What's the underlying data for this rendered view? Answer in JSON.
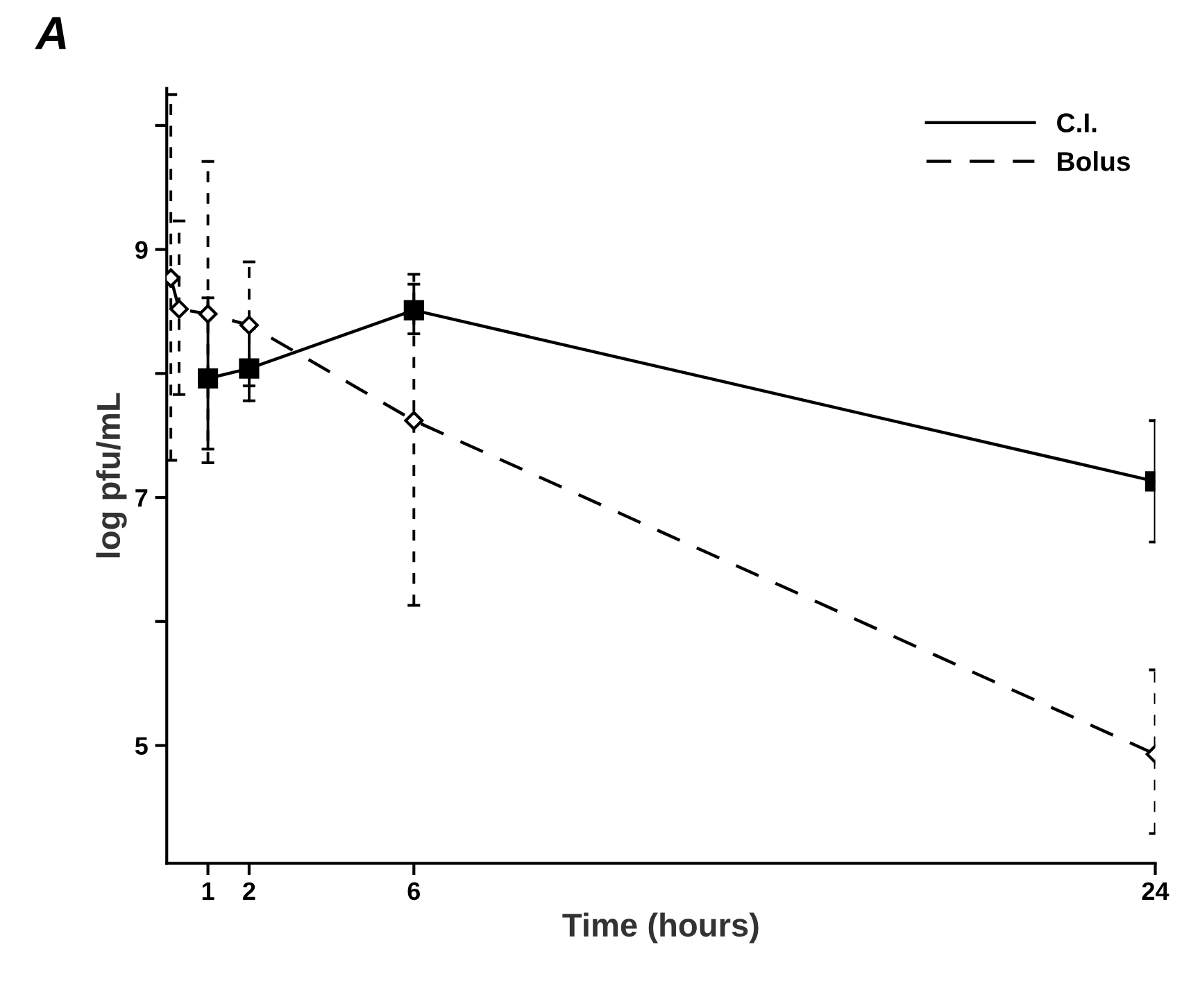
{
  "chart_data": {
    "type": "line",
    "title": "A",
    "xlabel": "Time (hours)",
    "ylabel": "log pfu/mL",
    "xlim": [
      0,
      24
    ],
    "xticks": [
      1,
      2,
      6,
      24
    ],
    "ylim": [
      4.05,
      10.3
    ],
    "yticks": [
      5,
      {
        "value": 6,
        "label": null
      },
      7,
      {
        "value": 8,
        "label": null
      },
      9,
      {
        "value": 10,
        "label": null
      }
    ],
    "grid": false,
    "legend": "top right",
    "series": [
      {
        "name": "C.I.",
        "color": "#000000",
        "marker": "square",
        "line_style": "solid",
        "x": [
          1,
          2,
          6,
          24
        ],
        "values": [
          7.96,
          8.04,
          8.51,
          7.13
        ],
        "errors": [
          [
            7.39,
            8.61
          ],
          [
            7.78,
            8.36
          ],
          [
            8.32,
            8.72
          ],
          [
            6.64,
            7.62
          ]
        ]
      },
      {
        "name": "Bolus",
        "color": "#000000",
        "marker": "diamond",
        "line_style": "dashed",
        "x": [
          0.1,
          0.3,
          1,
          2,
          6,
          24
        ],
        "values": [
          8.77,
          8.52,
          8.48,
          8.39,
          7.62,
          4.93
        ],
        "errors": [
          [
            7.3,
            10.25
          ],
          [
            7.83,
            9.23
          ],
          [
            7.28,
            9.71
          ],
          [
            7.9,
            8.9
          ],
          [
            6.13,
            8.8
          ],
          [
            4.29,
            5.61
          ]
        ]
      }
    ]
  }
}
